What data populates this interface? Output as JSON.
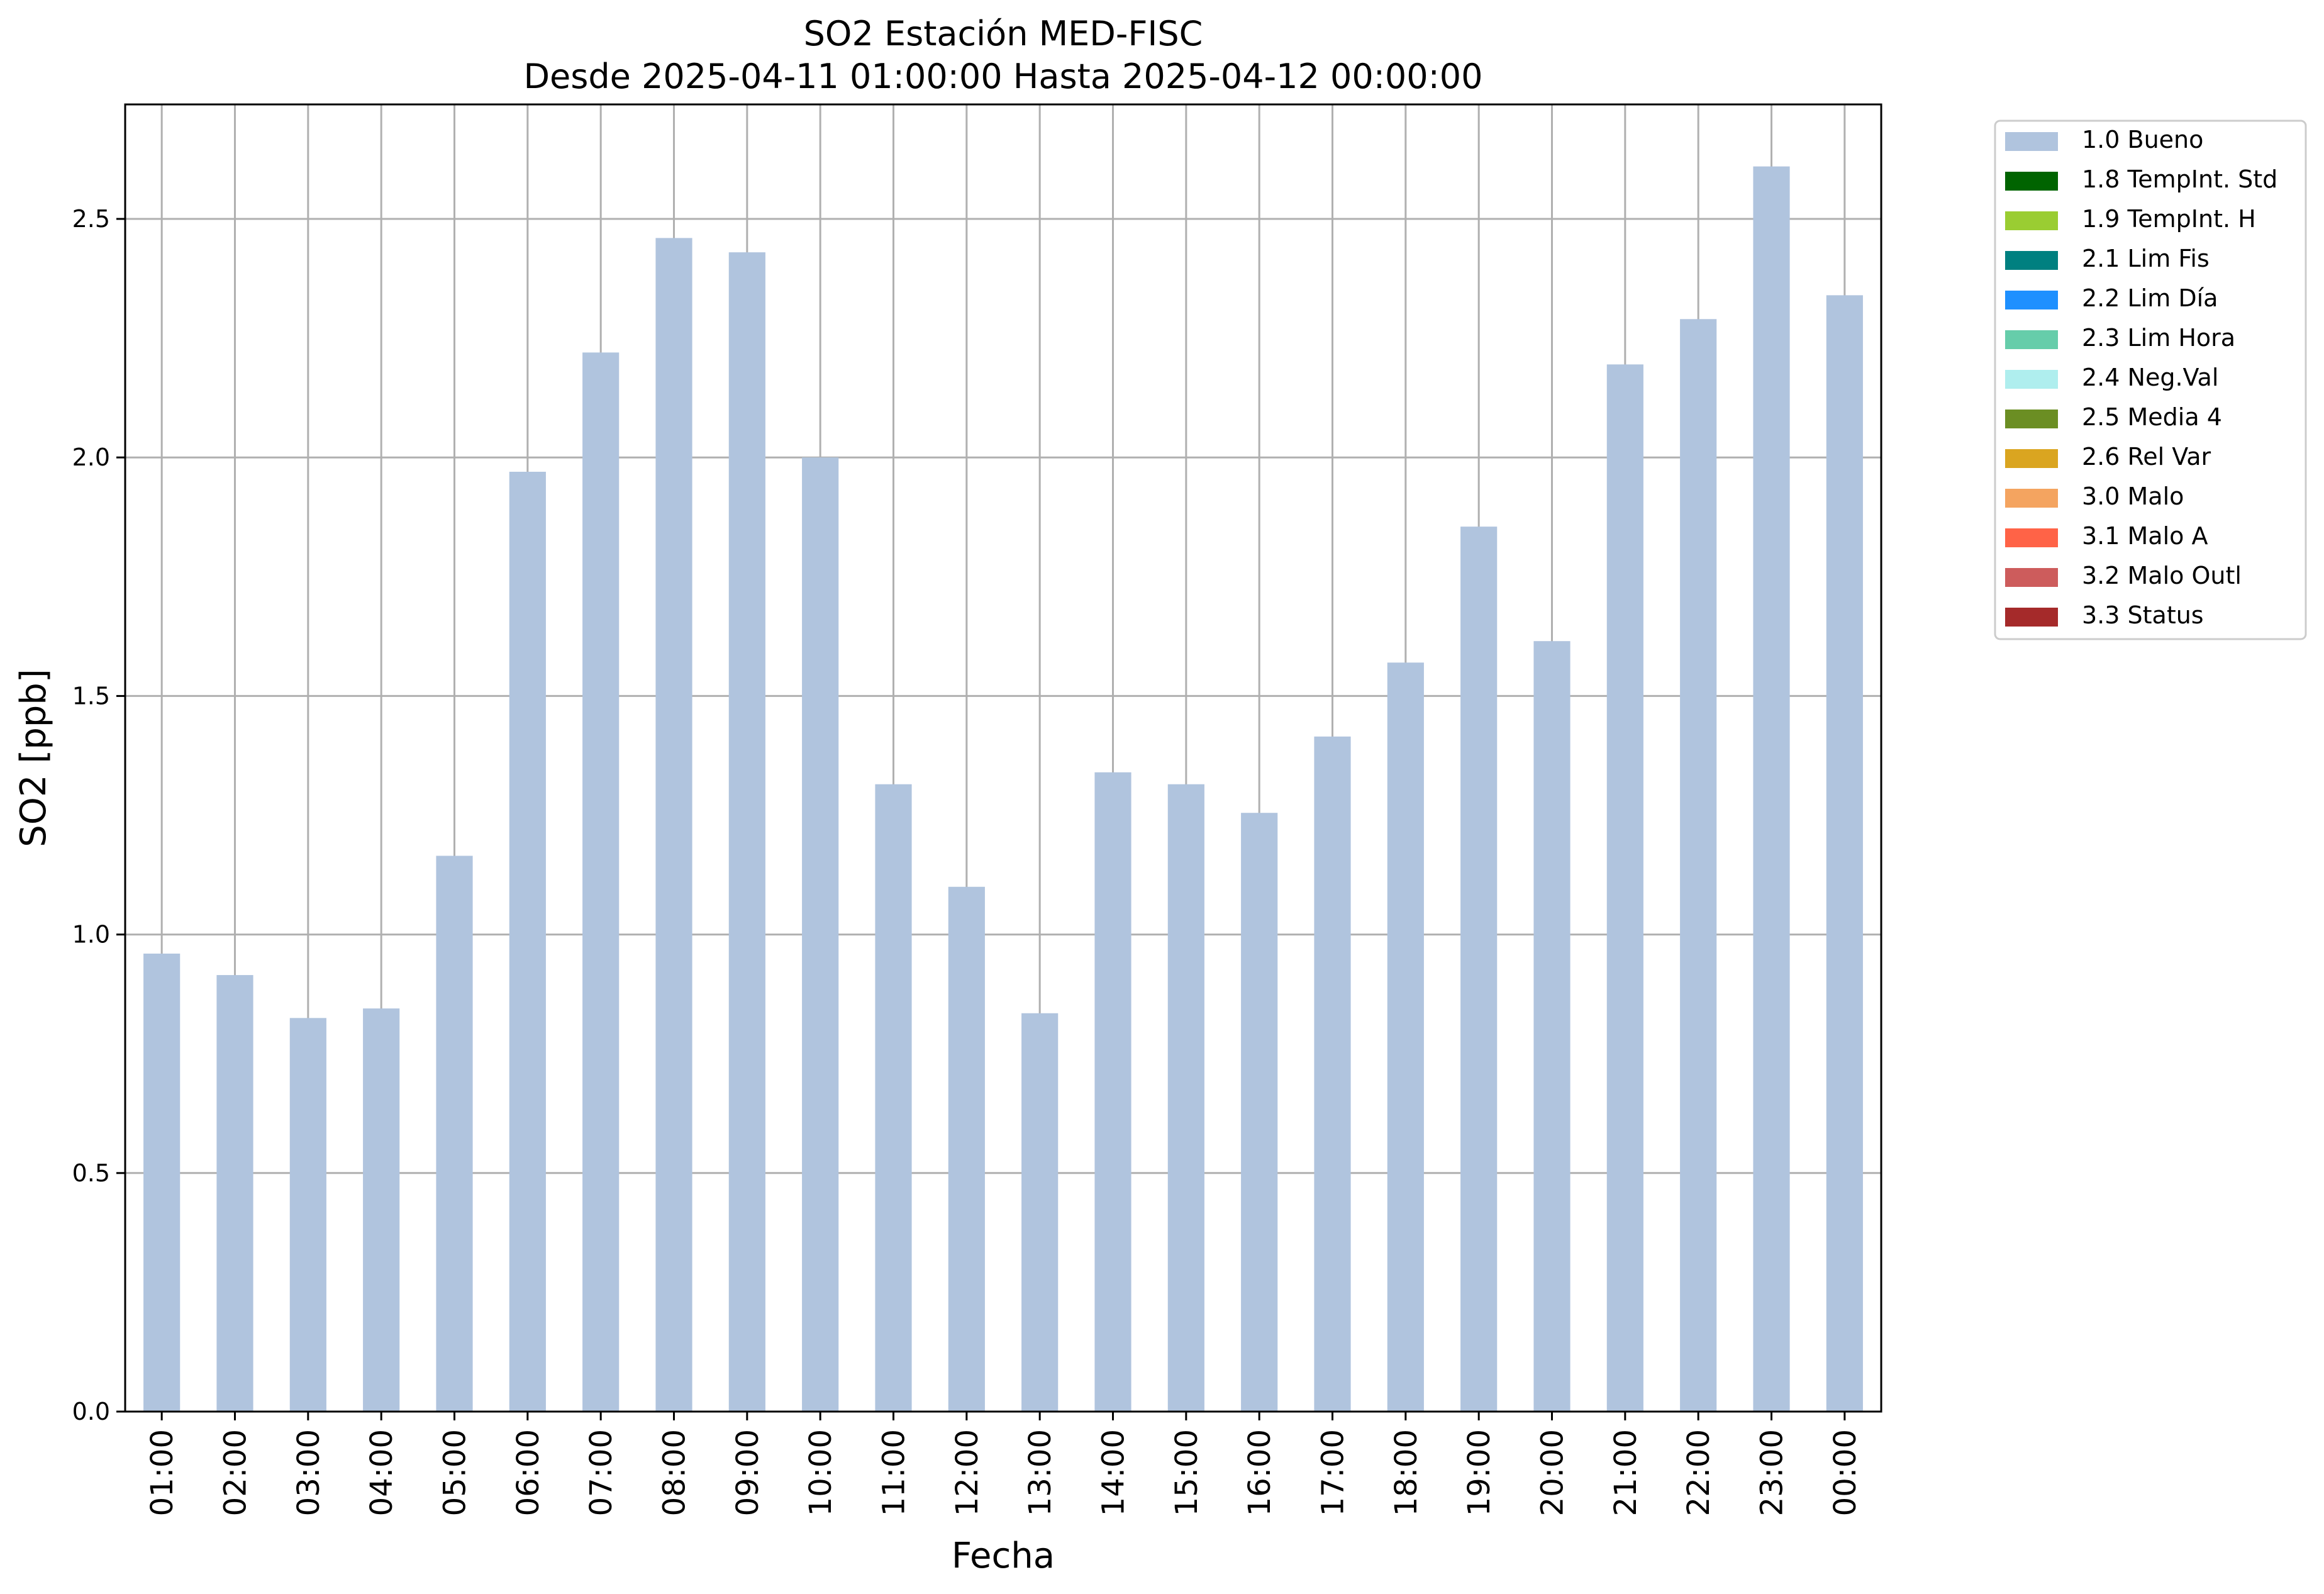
{
  "chart_data": {
    "type": "bar",
    "title": "SO2 Estación MED-FISC",
    "subtitle": "Desde 2025-04-11 01:00:00 Hasta 2025-04-12 00:00:00",
    "xlabel": "Fecha",
    "ylabel": "SO2 [ppb]",
    "ylim": [
      0,
      2.74
    ],
    "yticks": [
      0.0,
      0.5,
      1.0,
      1.5,
      2.0,
      2.5
    ],
    "ytick_labels": [
      "0.0",
      "0.5",
      "1.0",
      "1.5",
      "2.0",
      "2.5"
    ],
    "grid": true,
    "legend_position": "outside-top-right",
    "categories": [
      "01:00",
      "02:00",
      "03:00",
      "04:00",
      "05:00",
      "06:00",
      "07:00",
      "08:00",
      "09:00",
      "10:00",
      "11:00",
      "12:00",
      "13:00",
      "14:00",
      "15:00",
      "16:00",
      "17:00",
      "18:00",
      "19:00",
      "20:00",
      "21:00",
      "22:00",
      "23:00",
      "00:00"
    ],
    "series": [
      {
        "name": "1.0 Bueno",
        "color": "#b0c4de",
        "values": [
          0.96,
          0.915,
          0.825,
          0.845,
          1.165,
          1.97,
          2.22,
          2.46,
          2.43,
          2.0,
          1.315,
          1.1,
          0.835,
          1.34,
          1.315,
          1.255,
          1.415,
          1.57,
          1.855,
          1.615,
          2.195,
          2.29,
          2.61,
          2.34
        ]
      }
    ],
    "legend": [
      {
        "label": "1.0 Bueno",
        "color": "#b0c4de"
      },
      {
        "label": "1.8 TempInt. Std",
        "color": "#006400"
      },
      {
        "label": "1.9 TempInt. H",
        "color": "#9acd32"
      },
      {
        "label": "2.1 Lim Fis",
        "color": "#008080"
      },
      {
        "label": "2.2 Lim Día",
        "color": "#1e90ff"
      },
      {
        "label": "2.3 Lim Hora",
        "color": "#66cdaa"
      },
      {
        "label": "2.4 Neg.Val",
        "color": "#afeeee"
      },
      {
        "label": "2.5 Media 4",
        "color": "#6b8e23"
      },
      {
        "label": "2.6 Rel Var",
        "color": "#daa520"
      },
      {
        "label": "3.0 Malo",
        "color": "#f4a460"
      },
      {
        "label": "3.1 Malo A",
        "color": "#ff6347"
      },
      {
        "label": "3.2 Malo Outl",
        "color": "#cd5c5c"
      },
      {
        "label": "3.3 Status",
        "color": "#a52a2a"
      }
    ]
  }
}
